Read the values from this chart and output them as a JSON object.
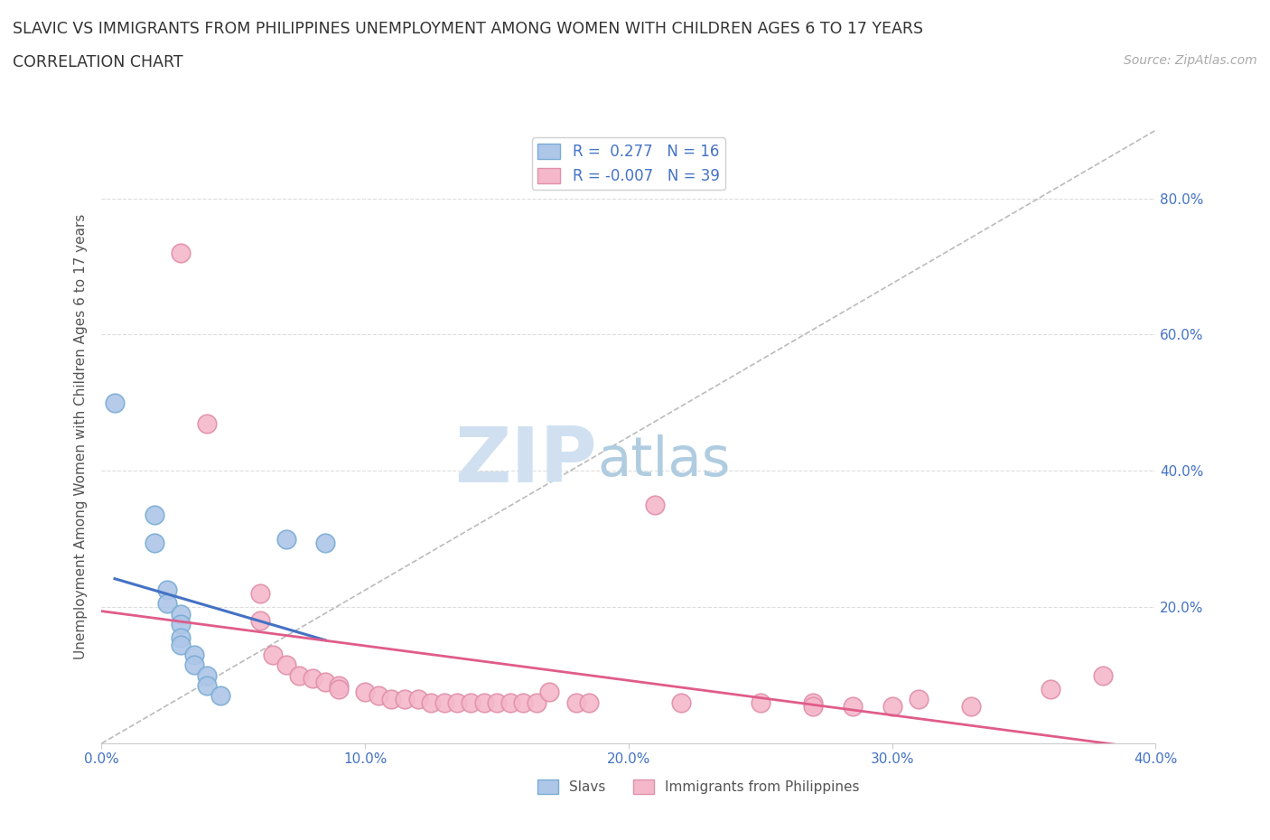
{
  "title_line1": "SLAVIC VS IMMIGRANTS FROM PHILIPPINES UNEMPLOYMENT AMONG WOMEN WITH CHILDREN AGES 6 TO 17 YEARS",
  "title_line2": "CORRELATION CHART",
  "source": "Source: ZipAtlas.com",
  "ylabel": "Unemployment Among Women with Children Ages 6 to 17 years",
  "xlim": [
    0.0,
    0.4
  ],
  "ylim": [
    0.0,
    0.9
  ],
  "xticks": [
    0.0,
    0.1,
    0.2,
    0.3,
    0.4
  ],
  "yticks": [
    0.0,
    0.2,
    0.4,
    0.6,
    0.8
  ],
  "xtick_labels": [
    "0.0%",
    "10.0%",
    "20.0%",
    "30.0%",
    "40.0%"
  ],
  "ytick_labels_right": [
    "",
    "20.0%",
    "40.0%",
    "60.0%",
    "80.0%"
  ],
  "legend_entries": [
    {
      "R": "0.277",
      "N": "16",
      "color": "#aec6e8",
      "edge": "#7aadd4"
    },
    {
      "R": "-0.007",
      "N": "39",
      "color": "#f5b8cb",
      "edge": "#e090aa"
    }
  ],
  "legend_labels_bottom": [
    "Slavs",
    "Immigrants from Philippines"
  ],
  "slavic_color": "#aec6e8",
  "slavic_edge": "#7aadd4",
  "philippines_color": "#f5b8cb",
  "philippines_edge": "#e090aa",
  "slavic_points": [
    [
      0.005,
      0.5
    ],
    [
      0.02,
      0.335
    ],
    [
      0.02,
      0.295
    ],
    [
      0.025,
      0.225
    ],
    [
      0.025,
      0.205
    ],
    [
      0.03,
      0.19
    ],
    [
      0.03,
      0.175
    ],
    [
      0.03,
      0.155
    ],
    [
      0.03,
      0.145
    ],
    [
      0.035,
      0.13
    ],
    [
      0.035,
      0.115
    ],
    [
      0.04,
      0.1
    ],
    [
      0.04,
      0.085
    ],
    [
      0.045,
      0.07
    ],
    [
      0.07,
      0.3
    ],
    [
      0.085,
      0.295
    ]
  ],
  "philippines_points": [
    [
      0.03,
      0.72
    ],
    [
      0.04,
      0.47
    ],
    [
      0.06,
      0.22
    ],
    [
      0.06,
      0.18
    ],
    [
      0.065,
      0.13
    ],
    [
      0.07,
      0.115
    ],
    [
      0.075,
      0.1
    ],
    [
      0.08,
      0.095
    ],
    [
      0.085,
      0.09
    ],
    [
      0.09,
      0.085
    ],
    [
      0.09,
      0.08
    ],
    [
      0.1,
      0.075
    ],
    [
      0.105,
      0.07
    ],
    [
      0.11,
      0.065
    ],
    [
      0.115,
      0.065
    ],
    [
      0.12,
      0.065
    ],
    [
      0.125,
      0.06
    ],
    [
      0.13,
      0.06
    ],
    [
      0.135,
      0.06
    ],
    [
      0.14,
      0.06
    ],
    [
      0.145,
      0.06
    ],
    [
      0.15,
      0.06
    ],
    [
      0.155,
      0.06
    ],
    [
      0.16,
      0.06
    ],
    [
      0.165,
      0.06
    ],
    [
      0.17,
      0.075
    ],
    [
      0.18,
      0.06
    ],
    [
      0.185,
      0.06
    ],
    [
      0.21,
      0.35
    ],
    [
      0.22,
      0.06
    ],
    [
      0.25,
      0.06
    ],
    [
      0.27,
      0.06
    ],
    [
      0.27,
      0.055
    ],
    [
      0.285,
      0.055
    ],
    [
      0.3,
      0.055
    ],
    [
      0.31,
      0.065
    ],
    [
      0.33,
      0.055
    ],
    [
      0.36,
      0.08
    ],
    [
      0.38,
      0.1
    ]
  ],
  "diag_line_color": "#bbbbbb",
  "slavic_trend_color": "#4472C4",
  "philippines_trend_color": "#E05C8A",
  "watermark_zip_color": "#d0e0f0",
  "watermark_atlas_color": "#b0cce0",
  "background_color": "#ffffff",
  "grid_color": "#dddddd",
  "axis_color": "#4472C4",
  "label_color": "#555555"
}
